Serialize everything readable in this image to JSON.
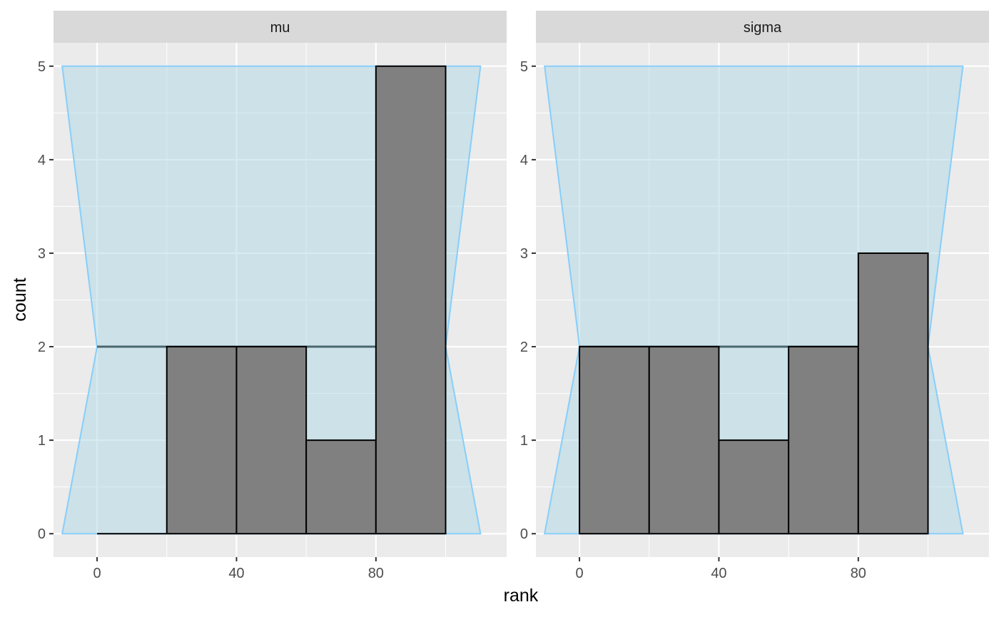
{
  "chart_data": {
    "type": "bar",
    "xlabel": "rank",
    "ylabel": "count",
    "xlim": [
      -12.5,
      117.5
    ],
    "ylim": [
      -0.25,
      5.25
    ],
    "x_ticks": [
      0,
      40,
      80
    ],
    "y_ticks": [
      0,
      1,
      2,
      3,
      4,
      5
    ],
    "grid": true,
    "bin_edges": [
      0,
      20,
      40,
      60,
      80,
      100
    ],
    "band": {
      "polygon": [
        [
          -10,
          0
        ],
        [
          0,
          2
        ],
        [
          -10,
          5
        ],
        [
          110,
          5
        ],
        [
          100,
          2
        ],
        [
          110,
          0
        ]
      ],
      "mean_line": {
        "y": 2,
        "x": [
          0,
          100
        ]
      },
      "fill": "#ADD8E6",
      "stroke": "#87CEFA"
    },
    "bar_fill": "#808080",
    "bar_stroke": "#000000",
    "panels": [
      {
        "label": "mu",
        "counts": [
          0,
          2,
          2,
          1,
          5
        ]
      },
      {
        "label": "sigma",
        "counts": [
          2,
          2,
          1,
          2,
          3
        ]
      }
    ]
  }
}
